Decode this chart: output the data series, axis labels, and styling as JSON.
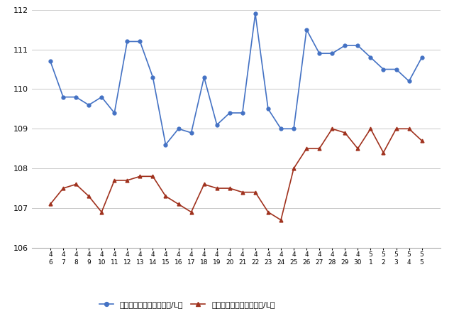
{
  "x_labels_combined": [
    "4\n6",
    "4\n7",
    "4\n8",
    "4\n9",
    "4\n10",
    "4\n11",
    "4\n12",
    "4\n13",
    "4\n14",
    "4\n15",
    "4\n16",
    "4\n17",
    "4\n18",
    "4\n19",
    "4\n20",
    "4\n21",
    "4\n22",
    "4\n23",
    "4\n24",
    "4\n25",
    "4\n26",
    "4\n27",
    "4\n28",
    "4\n29",
    "4\n30",
    "5\n1",
    "5\n2",
    "5\n3",
    "5\n4",
    "5\n5"
  ],
  "blue_line": [
    110.7,
    109.8,
    109.8,
    109.6,
    109.8,
    109.4,
    111.2,
    111.2,
    110.3,
    108.6,
    109.0,
    108.9,
    110.3,
    109.1,
    109.4,
    109.4,
    111.9,
    109.5,
    109.0,
    109.0,
    111.5,
    110.9,
    110.9,
    111.1,
    111.1,
    110.8,
    110.5,
    110.5,
    110.2,
    110.8
  ],
  "red_line": [
    107.1,
    107.5,
    107.6,
    107.3,
    106.9,
    107.7,
    107.7,
    107.8,
    107.8,
    107.3,
    107.1,
    106.9,
    107.6,
    107.5,
    107.5,
    107.4,
    107.4,
    106.9,
    106.7,
    108.0,
    108.5,
    108.5,
    109.0,
    108.9,
    108.5,
    109.0,
    108.4,
    109.0,
    109.0,
    108.7
  ],
  "ylim": [
    106,
    112
  ],
  "yticks": [
    106,
    107,
    108,
    109,
    110,
    111,
    112
  ],
  "blue_color": "#4472C4",
  "red_color": "#A0321E",
  "legend_blue": "レギュラー看板価格（円/L）",
  "legend_red": "レギュラー実売価格（円/L）",
  "background_color": "#ffffff",
  "grid_color": "#c8c8c8",
  "spine_color": "#aaaaaa"
}
